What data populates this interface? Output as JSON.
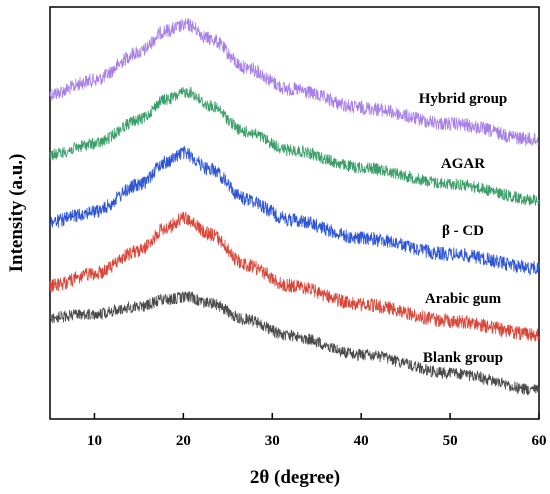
{
  "chart_data": {
    "type": "line",
    "title": "",
    "xlabel": "2θ (degree)",
    "ylabel": "Intensity (a.u.)",
    "xlim": [
      5,
      60
    ],
    "x_ticks": [
      "10",
      "20",
      "30",
      "40",
      "50",
      "60"
    ],
    "y_ticks_shown": false,
    "grid": false,
    "legend": "inline labels at right of each trace",
    "peak_position_x": 20.5,
    "series": [
      {
        "name": "Hybrid group",
        "color": "#a77fe6",
        "x": [
          5,
          10,
          15,
          18,
          20.5,
          23,
          27,
          32,
          40,
          50,
          60
        ],
        "y": [
          0.4,
          0.52,
          0.76,
          0.95,
          1.0,
          0.88,
          0.63,
          0.44,
          0.28,
          0.14,
          0.0
        ]
      },
      {
        "name": "AGAR",
        "color": "#3a9e68",
        "x": [
          5,
          10,
          15,
          18,
          20.5,
          23,
          27,
          32,
          40,
          50,
          60
        ],
        "y": [
          0.42,
          0.52,
          0.74,
          0.93,
          1.0,
          0.87,
          0.63,
          0.46,
          0.3,
          0.15,
          0.0
        ]
      },
      {
        "name": "β - CD",
        "color": "#2e55d6",
        "x": [
          5,
          10,
          15,
          18,
          20,
          23,
          27,
          32,
          40,
          50,
          60
        ],
        "y": [
          0.4,
          0.49,
          0.72,
          0.92,
          1.0,
          0.86,
          0.6,
          0.42,
          0.26,
          0.12,
          0.0
        ]
      },
      {
        "name": "Arabic gum",
        "color": "#d9473a",
        "x": [
          5,
          10,
          15,
          18,
          20,
          23,
          27,
          32,
          40,
          50,
          60
        ],
        "y": [
          0.42,
          0.52,
          0.72,
          0.91,
          1.0,
          0.86,
          0.6,
          0.42,
          0.26,
          0.12,
          0.0
        ]
      },
      {
        "name": "Blank group",
        "color": "#4a4a4a",
        "x": [
          5,
          10,
          15,
          18,
          20.5,
          23,
          27,
          32,
          40,
          50,
          60
        ],
        "y": [
          0.78,
          0.82,
          0.9,
          0.97,
          1.0,
          0.93,
          0.76,
          0.58,
          0.38,
          0.18,
          0.0
        ]
      }
    ]
  }
}
